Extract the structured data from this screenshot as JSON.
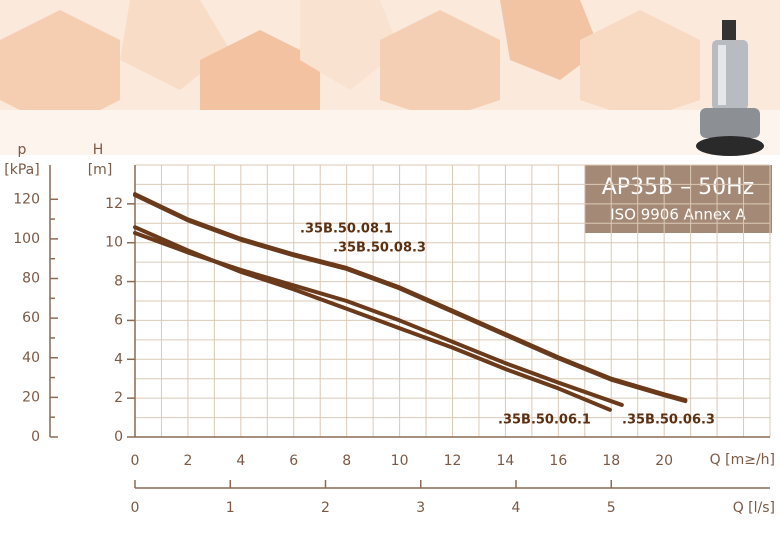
{
  "chart_data": {
    "type": "line",
    "title": "AP35B – 50Hz",
    "subtitle": "ISO 9906 Annex A",
    "y_label": "H",
    "y_unit": "[m]",
    "y2_label": "p",
    "y2_unit": "[kPa]",
    "x_label": "Q [m≥/h]",
    "x2_label": "Q [l/s]",
    "xlim": [
      0,
      24
    ],
    "xticks": [
      0,
      2,
      4,
      6,
      8,
      10,
      12,
      14,
      16,
      18,
      20
    ],
    "ylim": [
      0,
      14
    ],
    "yticks": [
      0,
      2,
      4,
      6,
      8,
      10,
      12
    ],
    "y2lim": [
      0,
      137.3
    ],
    "y2ticks": [
      0,
      20,
      40,
      60,
      80,
      100,
      120
    ],
    "x2lim": [
      0,
      6.667
    ],
    "x2ticks": [
      0,
      1,
      2,
      3,
      4,
      5
    ],
    "grid": true,
    "series": [
      {
        "name": ".35B.50.08.1",
        "color": "#6b3a1a",
        "x": [
          0,
          2,
          4,
          6,
          8,
          10,
          12,
          14,
          16,
          18,
          20,
          20.8
        ],
        "values": [
          12.5,
          11.2,
          10.2,
          9.4,
          8.7,
          7.7,
          6.5,
          5.3,
          4.1,
          3.0,
          2.2,
          1.9
        ]
      },
      {
        "name": ".35B.50.08.3",
        "color": "#6b3a1a",
        "x": [
          0,
          2,
          4,
          6,
          8,
          10,
          12,
          14,
          16,
          18,
          20,
          20.8
        ],
        "values": [
          12.45,
          11.15,
          10.15,
          9.35,
          8.65,
          7.65,
          6.45,
          5.25,
          4.05,
          2.95,
          2.15,
          1.85
        ]
      },
      {
        "name": ".35B.50.06.1",
        "color": "#6b3a1a",
        "x": [
          0,
          2,
          4,
          6,
          8,
          10,
          12,
          14,
          16,
          17.95
        ],
        "values": [
          10.8,
          9.6,
          8.5,
          7.6,
          6.6,
          5.6,
          4.6,
          3.5,
          2.5,
          1.4
        ]
      },
      {
        "name": ".35B.50.06.3",
        "color": "#6b3a1a",
        "x": [
          0,
          2,
          4,
          6,
          8,
          10,
          12,
          14,
          16,
          18.4
        ],
        "values": [
          10.5,
          9.5,
          8.6,
          7.8,
          7.0,
          6.0,
          4.9,
          3.8,
          2.8,
          1.65
        ]
      }
    ]
  }
}
